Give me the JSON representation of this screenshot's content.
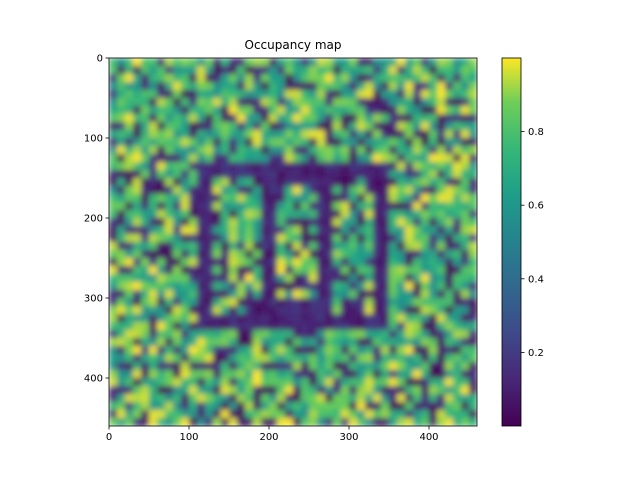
{
  "chart_data": {
    "type": "heatmap",
    "title": "Occupancy map",
    "xlabel": "",
    "ylabel": "",
    "x_range": [
      0,
      460
    ],
    "y_range": [
      0,
      460
    ],
    "y_inverted": true,
    "x_ticks": [
      0,
      100,
      200,
      300,
      400
    ],
    "y_ticks": [
      0,
      100,
      200,
      300,
      400
    ],
    "colormap": "viridis",
    "value_range": [
      0.0,
      1.0
    ],
    "colorbar_ticks": [
      0.2,
      0.4,
      0.6,
      0.8
    ],
    "grid": false,
    "features": [
      {
        "kind": "low-occupancy rectangle outline",
        "x": [
          120,
          340
        ],
        "y": [
          140,
          330
        ]
      },
      {
        "kind": "low-occupancy inner frame",
        "x": [
          200,
          270
        ],
        "y": [
          150,
          310
        ]
      }
    ]
  },
  "colors": {
    "viridis_low": "#440154",
    "viridis_mid": "#21918c",
    "viridis_high": "#fde725"
  }
}
